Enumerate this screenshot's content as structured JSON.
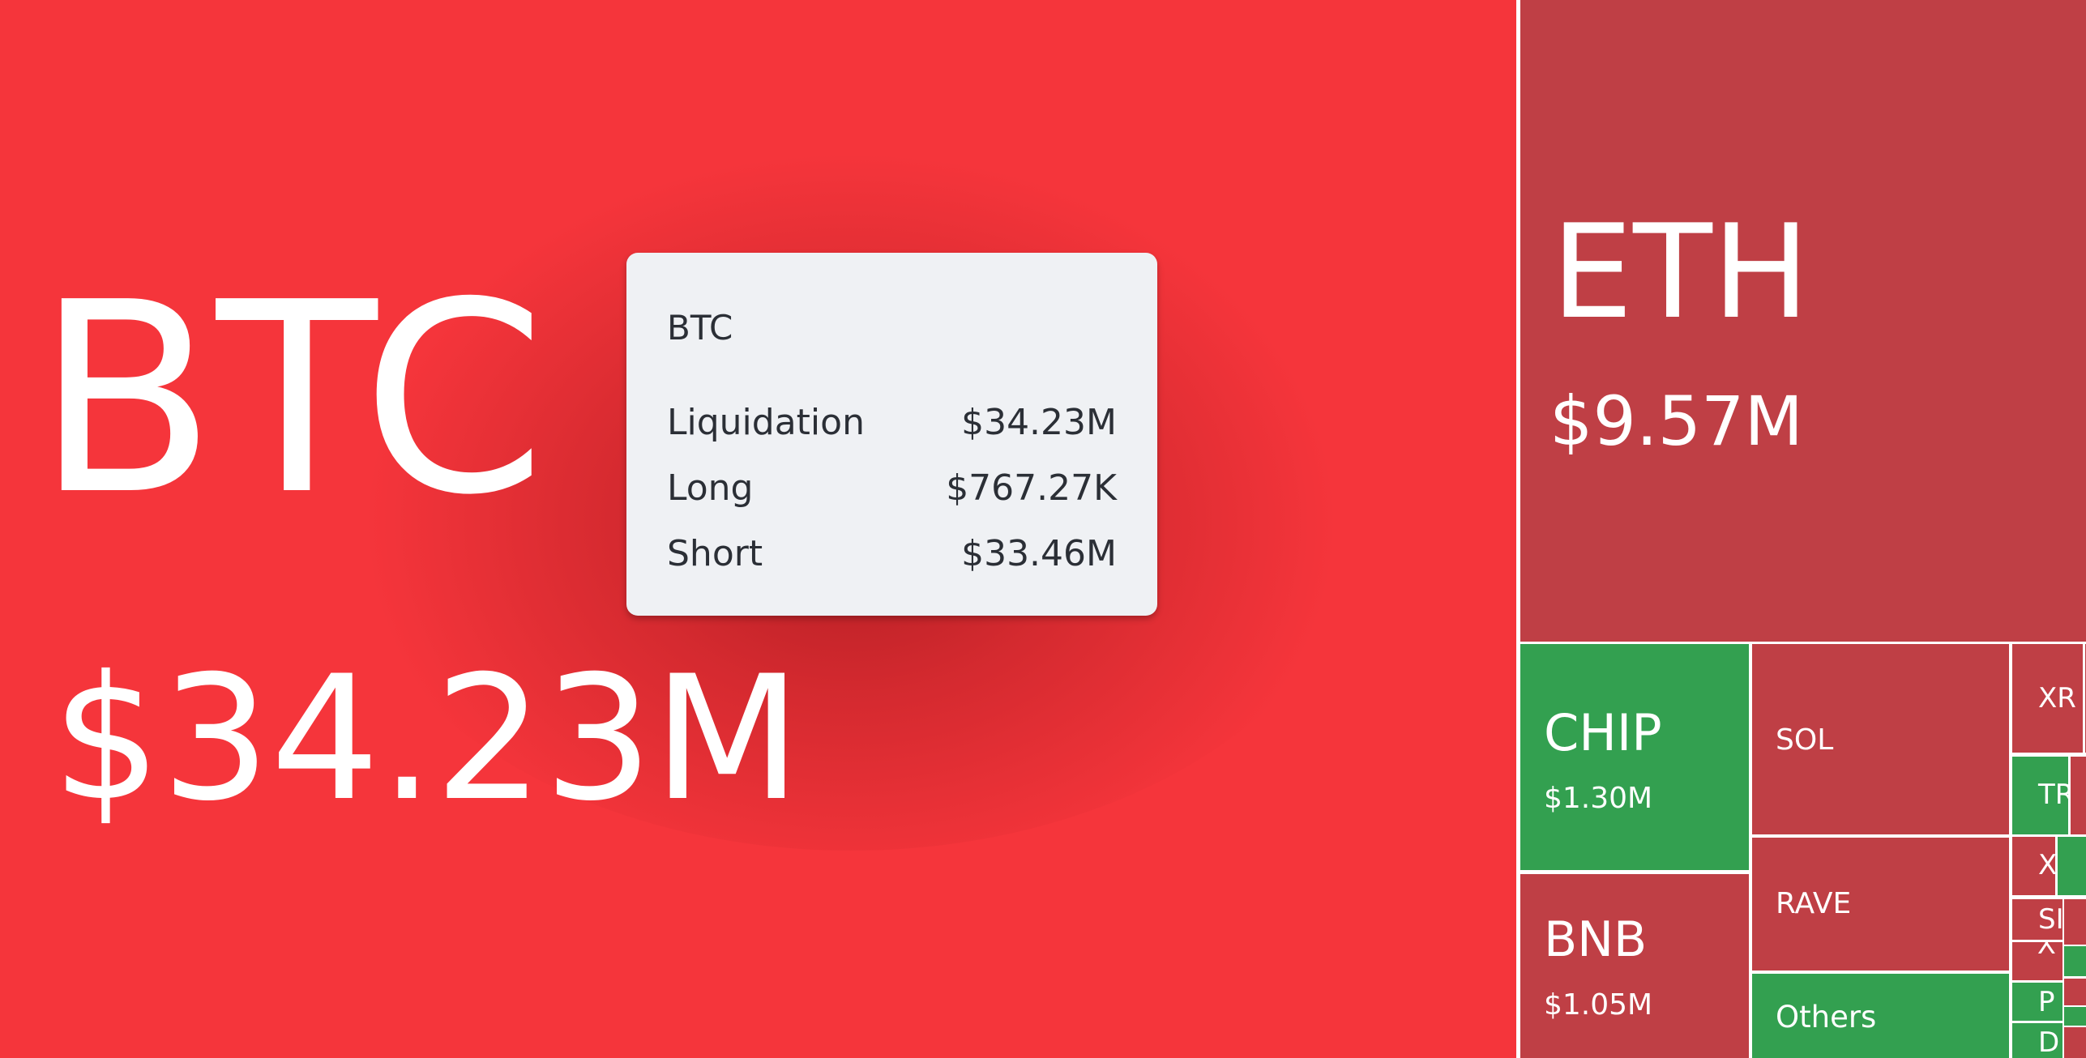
{
  "chart_data": {
    "type": "treemap",
    "colors": {
      "long_dominant": "#33a050",
      "short_dominant": "#bf3f45",
      "highlight": "#f5353b"
    },
    "tiles": [
      {
        "symbol": "BTC",
        "value": "$34.23M",
        "color": "red",
        "hovered": true
      },
      {
        "symbol": "ETH",
        "value": "$9.57M",
        "color": "red"
      },
      {
        "symbol": "CHIP",
        "value": "$1.30M",
        "color": "green"
      },
      {
        "symbol": "BNB",
        "value": "$1.05M",
        "color": "red"
      },
      {
        "symbol": "SOL",
        "value": "",
        "color": "red"
      },
      {
        "symbol": "RAVE",
        "value": "",
        "color": "red"
      },
      {
        "symbol": "Others",
        "value": "",
        "color": "green"
      },
      {
        "symbol": "XR",
        "value": "",
        "color": "red"
      },
      {
        "symbol": "TR",
        "value": "",
        "color": "green"
      },
      {
        "symbol": "X",
        "value": "",
        "color": "red"
      },
      {
        "symbol": "SI",
        "value": "",
        "color": "red"
      },
      {
        "symbol": "⅄",
        "value": "",
        "color": "red"
      },
      {
        "symbol": "P",
        "value": "",
        "color": "green"
      },
      {
        "symbol": "D",
        "value": "",
        "color": "green"
      }
    ],
    "tooltip": {
      "title": "BTC",
      "rows": [
        {
          "label": "Liquidation",
          "value": "$34.23M"
        },
        {
          "label": "Long",
          "value": "$767.27K"
        },
        {
          "label": "Short",
          "value": "$33.46M"
        }
      ]
    }
  }
}
